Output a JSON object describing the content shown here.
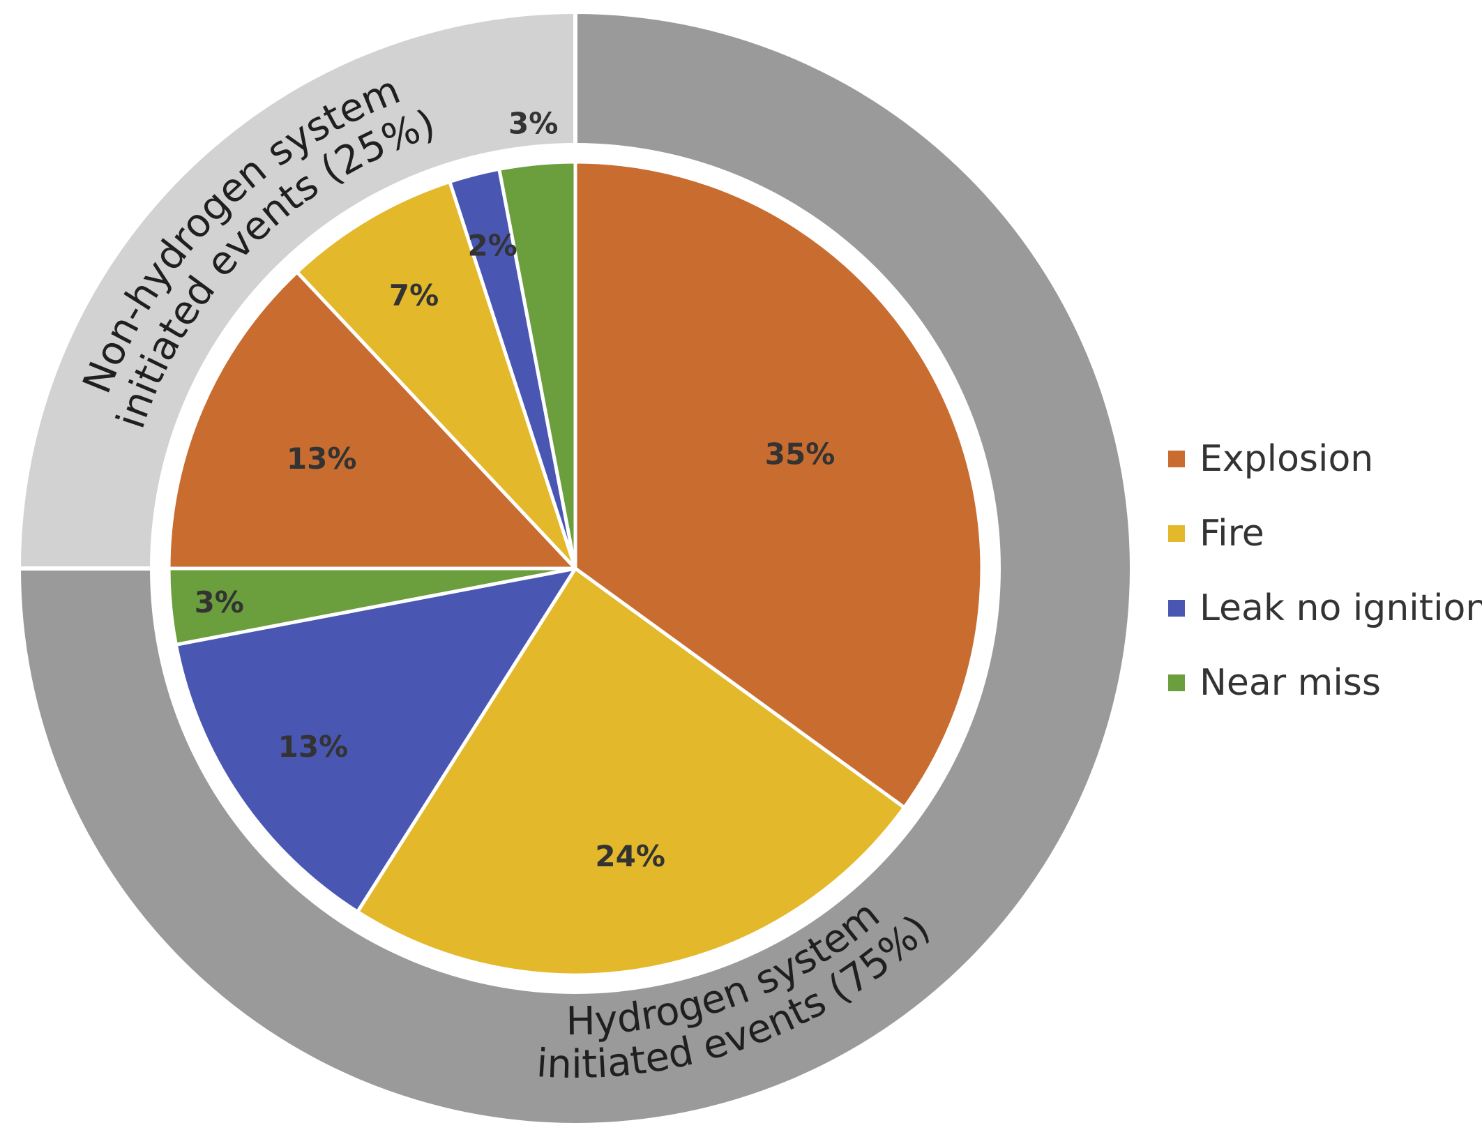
{
  "chart_data": {
    "type": "pie",
    "title": "",
    "legend_position": "right",
    "categories": [
      "Explosion",
      "Fire",
      "Leak no ignition",
      "Near miss"
    ],
    "colors": {
      "Explosion": "#c96c30",
      "Fire": "#e4b82b",
      "Leak no ignition": "#4957b3",
      "Near miss": "#6b9e3c",
      "hydrogen_ring": "#9a9a9a",
      "non_hydrogen_ring": "#d2d2d2"
    },
    "outer_ring": [
      {
        "name": "Hydrogen system initiated events (75%)",
        "value": 75
      },
      {
        "name": "Non-hydrogen system initiated events (25%)",
        "value": 25
      }
    ],
    "inner_slices": [
      {
        "group": "Hydrogen system",
        "category": "Explosion",
        "value": 35,
        "label": "35%"
      },
      {
        "group": "Hydrogen system",
        "category": "Fire",
        "value": 24,
        "label": "24%"
      },
      {
        "group": "Hydrogen system",
        "category": "Leak no ignition",
        "value": 13,
        "label": "13%"
      },
      {
        "group": "Hydrogen system",
        "category": "Near miss",
        "value": 3,
        "label": "3%"
      },
      {
        "group": "Non-hydrogen system",
        "category": "Explosion",
        "value": 13,
        "label": "13%"
      },
      {
        "group": "Non-hydrogen system",
        "category": "Fire",
        "value": 7,
        "label": "7%"
      },
      {
        "group": "Non-hydrogen system",
        "category": "Leak no ignition",
        "value": 2,
        "label": "2%"
      },
      {
        "group": "Non-hydrogen system",
        "category": "Near miss",
        "value": 3,
        "label": "3%"
      }
    ],
    "ring_labels": {
      "hydrogen": [
        "Hydrogen system",
        "initiated events (75%)"
      ],
      "non_hydrogen": [
        "Non-hydrogen system",
        "initiated events (25%)"
      ]
    }
  }
}
